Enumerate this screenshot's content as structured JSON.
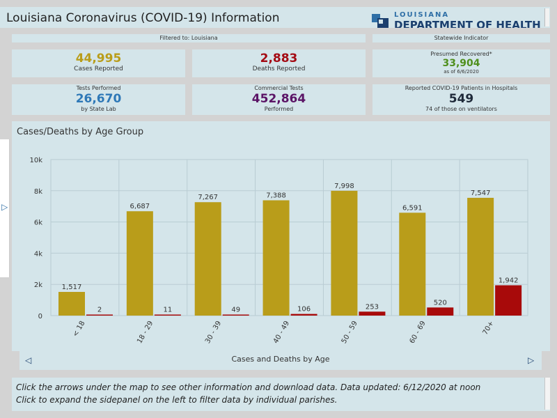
{
  "header": {
    "title": "Louisiana Coronavirus (COVID-19) Information",
    "logo_line1": "LOUISIANA",
    "logo_line2": "DEPARTMENT OF HEALTH"
  },
  "filter_label": "Filtered to: Louisiana",
  "statewide_label": "Statewide Indicator",
  "cards": {
    "cases": {
      "value": "44,995",
      "label": "Cases Reported",
      "color": "#b99d1a"
    },
    "deaths": {
      "value": "2,883",
      "label": "Deaths Reported",
      "color": "#a40b14"
    },
    "recovered": {
      "top": "Presumed Recovered*",
      "value": "33,904",
      "sub": "as of 6/6/2020",
      "color": "#4f8f1d"
    },
    "tests": {
      "top": "Tests Performed",
      "value": "26,670",
      "label": "by State Lab",
      "color": "#2e78b7"
    },
    "commercial": {
      "top": "Commercial Tests",
      "value": "452,864",
      "label": "Performed",
      "color": "#5b1466"
    },
    "hospitals": {
      "top": "Reported COVID-19 Patients in Hospitals",
      "value": "549",
      "label": "74 of those on ventilators",
      "color": "#1f2a3a"
    }
  },
  "chart_data": {
    "type": "bar",
    "title": "Cases/Deaths by Age Group",
    "categories": [
      "< 18",
      "18 - 29",
      "30 - 39",
      "40 - 49",
      "50 - 59",
      "60 - 69",
      "70+"
    ],
    "series": [
      {
        "name": "Cases",
        "values": [
          1517,
          6687,
          7267,
          7388,
          7998,
          6591,
          7547
        ],
        "labels": [
          "1,517",
          "6,687",
          "7,267",
          "7,388",
          "7,998",
          "6,591",
          "7,547"
        ],
        "color": "#b99d1a"
      },
      {
        "name": "Deaths",
        "values": [
          2,
          11,
          49,
          106,
          253,
          520,
          1942
        ],
        "labels": [
          "2",
          "11",
          "49",
          "106",
          "253",
          "520",
          "1,942"
        ],
        "color": "#a80a0a"
      }
    ],
    "ylim": [
      0,
      10000
    ],
    "yticks": [
      0,
      2000,
      4000,
      6000,
      8000,
      10000
    ],
    "ytick_labels": [
      "0",
      "2k",
      "4k",
      "6k",
      "8k",
      "10k"
    ],
    "grid": true
  },
  "nav": {
    "label": "Cases and Deaths by Age"
  },
  "info": {
    "line1": "Click the arrows under the map to see other information and download data. Data updated: 6/12/2020 at noon",
    "line2": "Click to expand the sidepanel on the left to filter data by individual parishes."
  }
}
